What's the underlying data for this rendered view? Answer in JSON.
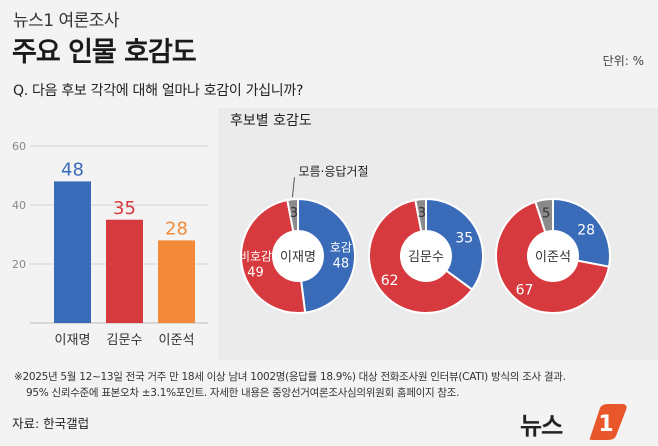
{
  "header": {
    "series": "뉴스1 여론조사",
    "title": "주요 인물 호감도",
    "unit": "단위: %",
    "question": "Q. 다음 후보 각각에 대해 얼마나 호감이 가십니까?"
  },
  "panel": {
    "title": "후보별 호감도"
  },
  "footnote": {
    "line1": "※2025년 5월 12~13일 전국 거주 만 18세 이상 남녀 1002명(응답률 18.9%) 대상 전화조사원 인터뷰(CATI) 방식의 조사 결과.",
    "line2": "95% 신뢰수준에 표본오차 ±3.1%포인트. 자세한 내용은 중앙선거여론조사심의위원회 홈페이지 참조."
  },
  "source": "자료: 한국갤럽",
  "logo": {
    "text": "뉴스",
    "mark": "1"
  },
  "chart_data": [
    {
      "type": "bar",
      "categories": [
        "이재명",
        "김문수",
        "이준석"
      ],
      "values": [
        48,
        35,
        28
      ],
      "colors": [
        "#3a6bb8",
        "#d73a3e",
        "#f38a3a"
      ],
      "yticks": [
        20,
        40,
        60
      ],
      "ylim": [
        0,
        60
      ]
    },
    {
      "type": "pie",
      "donuts": [
        {
          "name": "이재명",
          "slices": [
            {
              "label": "호감",
              "value": 48,
              "color": "#3a6bb8"
            },
            {
              "label": "비호감",
              "value": 49,
              "color": "#d73a3e"
            },
            {
              "label": "모름·응답거절",
              "value": 3,
              "color": "#8a8a8a"
            }
          ]
        },
        {
          "name": "김문수",
          "slices": [
            {
              "label": "호감",
              "value": 35,
              "color": "#3a6bb8"
            },
            {
              "label": "비호감",
              "value": 62,
              "color": "#d73a3e"
            },
            {
              "label": "모름·응답거절",
              "value": 3,
              "color": "#8a8a8a"
            }
          ]
        },
        {
          "name": "이준석",
          "slices": [
            {
              "label": "호감",
              "value": 28,
              "color": "#3a6bb8"
            },
            {
              "label": "비호감",
              "value": 67,
              "color": "#d73a3e"
            },
            {
              "label": "모름·응답거절",
              "value": 5,
              "color": "#8a8a8a"
            }
          ]
        }
      ]
    }
  ]
}
